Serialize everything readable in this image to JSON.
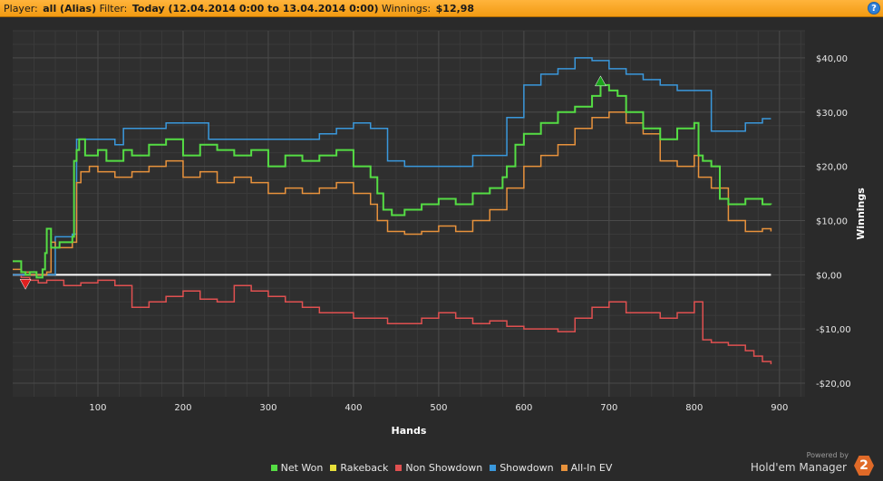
{
  "header": {
    "player_label": "Player:",
    "player_value": "all (Alias)",
    "filter_label": "Filter:",
    "filter_value": "Today (12.04.2014 0:00 to 13.04.2014 0:00)",
    "winnings_label": "Winnings:",
    "winnings_value": "$12,98",
    "help_label": "?"
  },
  "brand": {
    "powered_by": "Powered by",
    "name": "Hold'em Manager",
    "logo_text": "2"
  },
  "chart_data": {
    "type": "line",
    "xlabel": "Hands",
    "ylabel": "Winnings",
    "xlim": [
      0,
      930
    ],
    "ylim": [
      -22.5,
      45
    ],
    "x_ticks": [
      100,
      200,
      300,
      400,
      500,
      600,
      700,
      800,
      900
    ],
    "y_ticks": [
      {
        "value": 40,
        "label": "$40,00"
      },
      {
        "value": 30,
        "label": "$30,00"
      },
      {
        "value": 20,
        "label": "$20,00"
      },
      {
        "value": 10,
        "label": "$10,00"
      },
      {
        "value": 0,
        "label": "$0,00"
      },
      {
        "value": -10,
        "label": "-$10,00"
      },
      {
        "value": -20,
        "label": "-$20,00"
      }
    ],
    "grid": true,
    "legend_position": "bottom",
    "colors": {
      "net_won": "#55dd44",
      "rakeback": "#e8e03a",
      "non_showdown": "#e05050",
      "showdown": "#3a98dc",
      "allin_ev": "#e8923c",
      "zero_line": "#ffffff"
    },
    "series": [
      {
        "name": "Net Won",
        "key": "net_won",
        "x": [
          0,
          10,
          15,
          20,
          28,
          35,
          38,
          40,
          45,
          50,
          55,
          60,
          65,
          70,
          72,
          75,
          78,
          85,
          100,
          110,
          130,
          140,
          160,
          180,
          200,
          220,
          240,
          260,
          280,
          300,
          320,
          340,
          360,
          380,
          400,
          420,
          428,
          435,
          445,
          460,
          480,
          500,
          520,
          540,
          560,
          575,
          580,
          590,
          600,
          620,
          640,
          660,
          680,
          690,
          700,
          710,
          720,
          740,
          760,
          780,
          800,
          805,
          810,
          820,
          830,
          840,
          860,
          880,
          890
        ],
        "y": [
          2.5,
          0.5,
          0,
          0.5,
          -0.5,
          1,
          4,
          8.5,
          5,
          5,
          6,
          6,
          6,
          7,
          21,
          23,
          25,
          22,
          23,
          21,
          23,
          22,
          24,
          25,
          22,
          24,
          23,
          22,
          23,
          20,
          22,
          21,
          22,
          23,
          20,
          18,
          15,
          12,
          11,
          12,
          13,
          14,
          13,
          15,
          16,
          18,
          20,
          24,
          26,
          28,
          30,
          31,
          33,
          35,
          34,
          33,
          30,
          27,
          25,
          27,
          28,
          22,
          21,
          20,
          14,
          13,
          14,
          13,
          12.98
        ]
      },
      {
        "name": "Rakeback",
        "key": "rakeback",
        "x": [
          0,
          890
        ],
        "y": [
          0,
          0
        ]
      },
      {
        "name": "Non Showdown",
        "key": "non_showdown",
        "x": [
          0,
          10,
          20,
          30,
          40,
          60,
          80,
          100,
          120,
          140,
          160,
          180,
          200,
          220,
          240,
          260,
          280,
          300,
          320,
          340,
          360,
          380,
          400,
          420,
          440,
          460,
          480,
          500,
          520,
          540,
          560,
          580,
          600,
          620,
          640,
          660,
          680,
          700,
          720,
          740,
          760,
          780,
          800,
          810,
          820,
          840,
          860,
          870,
          880,
          890
        ],
        "y": [
          0,
          -0.5,
          -1,
          -1.5,
          -1,
          -2,
          -1.5,
          -1,
          -2,
          -6,
          -5,
          -4,
          -3,
          -4.5,
          -5,
          -2,
          -3,
          -4,
          -5,
          -6,
          -7,
          -7,
          -8,
          -8,
          -9,
          -9,
          -8,
          -7,
          -8,
          -9,
          -8.5,
          -9.5,
          -10,
          -10,
          -10.5,
          -8,
          -6,
          -5,
          -7,
          -7,
          -8,
          -7,
          -5,
          -12,
          -12.5,
          -13,
          -14,
          -15,
          -16,
          -16.5
        ]
      },
      {
        "name": "Showdown",
        "key": "showdown",
        "x": [
          0,
          20,
          30,
          40,
          50,
          65,
          70,
          75,
          120,
          130,
          160,
          180,
          230,
          280,
          320,
          360,
          380,
          400,
          420,
          440,
          460,
          520,
          540,
          560,
          580,
          600,
          620,
          640,
          660,
          680,
          700,
          720,
          740,
          760,
          780,
          800,
          820,
          840,
          860,
          880,
          890
        ],
        "y": [
          0,
          0,
          0,
          0,
          7,
          7,
          7.5,
          25,
          24,
          27,
          27,
          28,
          25,
          25,
          25,
          26,
          27,
          28,
          27,
          21,
          20,
          20,
          22,
          22,
          29,
          35,
          37,
          38,
          40,
          39.5,
          38,
          37,
          36,
          35,
          34,
          34,
          26.5,
          26.5,
          28,
          28.8,
          28.8
        ]
      },
      {
        "name": "All-In EV",
        "key": "allin_ev",
        "x": [
          0,
          10,
          20,
          30,
          40,
          45,
          50,
          60,
          65,
          70,
          75,
          80,
          90,
          100,
          120,
          140,
          160,
          180,
          200,
          220,
          240,
          260,
          280,
          300,
          320,
          340,
          360,
          380,
          400,
          420,
          428,
          440,
          460,
          480,
          500,
          520,
          540,
          560,
          580,
          600,
          620,
          640,
          660,
          680,
          700,
          720,
          740,
          760,
          780,
          800,
          805,
          820,
          840,
          860,
          880,
          890
        ],
        "y": [
          1,
          0.5,
          0,
          0,
          0.5,
          6,
          5,
          5,
          5,
          6,
          17,
          19,
          20,
          19,
          18,
          19,
          20,
          21,
          18,
          19,
          17,
          18,
          17,
          15,
          16,
          15,
          16,
          17,
          15,
          13,
          10,
          8,
          7.5,
          8,
          9,
          8,
          10,
          12,
          16,
          20,
          22,
          24,
          27,
          29,
          30,
          28,
          26,
          21,
          20,
          22,
          18,
          16,
          10,
          8,
          8.5,
          8
        ]
      }
    ],
    "markers": [
      {
        "series": "net_won",
        "kind": "max",
        "x": 690,
        "y": 35.5,
        "color": "#1aa31a"
      },
      {
        "series": "net_won",
        "kind": "min",
        "x": 15,
        "y": -1.5,
        "color": "#e02020"
      }
    ]
  }
}
